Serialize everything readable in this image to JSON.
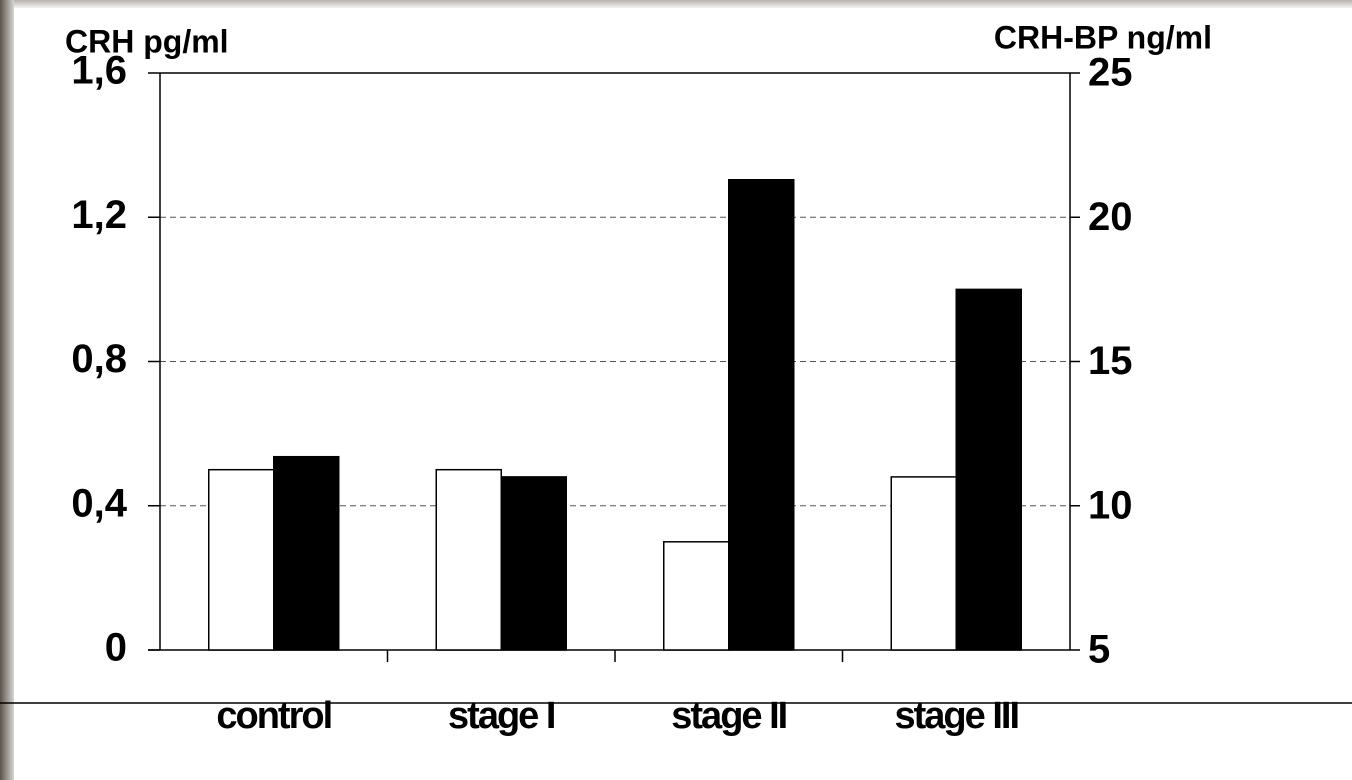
{
  "chart_data": {
    "type": "bar",
    "ylabel": "CRH pg/ml",
    "y2label": "CRH-BP ng/ml",
    "categories": [
      "control",
      "stage I",
      "stage II",
      "stage III"
    ],
    "series": [
      {
        "color": "#ffffff",
        "values": [
          0.5,
          0.5,
          0.3,
          0.48
        ]
      },
      {
        "color": "#000000",
        "axis": "y2",
        "values": [
          11.7,
          11.0,
          21.3,
          17.5
        ]
      }
    ],
    "ylim": [
      0,
      1.6
    ],
    "yticks": [
      0,
      {
        "value": 0.4,
        "label": "0,4"
      },
      {
        "value": 0.8,
        "label": "0,8"
      },
      {
        "value": 1.2,
        "label": "1,2"
      },
      {
        "value": 1.6,
        "label": "1,6"
      }
    ],
    "y2lim": [
      5,
      25
    ],
    "y2ticks": [
      5,
      10,
      15,
      20,
      25
    ],
    "grid": true
  }
}
